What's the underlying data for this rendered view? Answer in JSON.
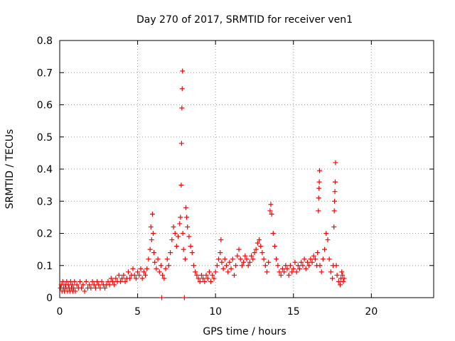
{
  "chart_data": {
    "type": "scatter",
    "title": "Day 270 of 2017, SRMTID for receiver ven1",
    "xlabel": "GPS time / hours",
    "ylabel": "SRMTID / TECUs",
    "xlim": [
      0,
      24
    ],
    "ylim": [
      0,
      0.8
    ],
    "xticks": [
      0,
      5,
      10,
      15,
      20
    ],
    "xtick_labels": [
      "0",
      "5",
      "10",
      "15",
      "20"
    ],
    "yticks": [
      0,
      0.1,
      0.2,
      0.3,
      0.4,
      0.5,
      0.6,
      0.7,
      0.8
    ],
    "ytick_labels": [
      "0",
      "0.1",
      "0.2",
      "0.3",
      "0.4",
      "0.5",
      "0.6",
      "0.7",
      "0.8"
    ],
    "grid": true,
    "marker": "plus",
    "color": "#ff0000",
    "series": [
      {
        "name": "ven1",
        "points": [
          [
            0.05,
            0.03
          ],
          [
            0.1,
            0.04
          ],
          [
            0.15,
            0.02
          ],
          [
            0.2,
            0.05
          ],
          [
            0.25,
            0.03
          ],
          [
            0.3,
            0.02
          ],
          [
            0.35,
            0.04
          ],
          [
            0.4,
            0.03
          ],
          [
            0.45,
            0.05
          ],
          [
            0.5,
            0.02
          ],
          [
            0.55,
            0.04
          ],
          [
            0.6,
            0.03
          ],
          [
            0.65,
            0.02
          ],
          [
            0.7,
            0.05
          ],
          [
            0.75,
            0.03
          ],
          [
            0.8,
            0.04
          ],
          [
            0.85,
            0.02
          ],
          [
            0.9,
            0.03
          ],
          [
            0.95,
            0.05
          ],
          [
            1.0,
            0.02
          ],
          [
            1.1,
            0.04
          ],
          [
            1.2,
            0.03
          ],
          [
            1.3,
            0.05
          ],
          [
            1.4,
            0.03
          ],
          [
            1.5,
            0.04
          ],
          [
            1.6,
            0.02
          ],
          [
            1.7,
            0.05
          ],
          [
            1.8,
            0.03
          ],
          [
            1.9,
            0.04
          ],
          [
            2.0,
            0.03
          ],
          [
            2.1,
            0.05
          ],
          [
            2.2,
            0.04
          ],
          [
            2.3,
            0.03
          ],
          [
            2.4,
            0.05
          ],
          [
            2.5,
            0.04
          ],
          [
            2.6,
            0.03
          ],
          [
            2.7,
            0.05
          ],
          [
            2.8,
            0.04
          ],
          [
            2.9,
            0.03
          ],
          [
            3.0,
            0.04
          ],
          [
            3.1,
            0.05
          ],
          [
            3.2,
            0.04
          ],
          [
            3.3,
            0.06
          ],
          [
            3.4,
            0.05
          ],
          [
            3.5,
            0.04
          ],
          [
            3.6,
            0.06
          ],
          [
            3.7,
            0.05
          ],
          [
            3.8,
            0.07
          ],
          [
            3.9,
            0.05
          ],
          [
            4.0,
            0.06
          ],
          [
            4.1,
            0.07
          ],
          [
            4.2,
            0.05
          ],
          [
            4.3,
            0.06
          ],
          [
            4.4,
            0.08
          ],
          [
            4.5,
            0.06
          ],
          [
            4.6,
            0.07
          ],
          [
            4.7,
            0.09
          ],
          [
            4.8,
            0.07
          ],
          [
            4.9,
            0.06
          ],
          [
            5.0,
            0.08
          ],
          [
            5.1,
            0.07
          ],
          [
            5.2,
            0.09
          ],
          [
            5.3,
            0.06
          ],
          [
            5.4,
            0.08
          ],
          [
            5.5,
            0.07
          ],
          [
            5.6,
            0.09
          ],
          [
            5.7,
            0.12
          ],
          [
            5.8,
            0.15
          ],
          [
            5.9,
            0.18
          ],
          [
            6.0,
            0.2
          ],
          [
            5.85,
            0.22
          ],
          [
            5.95,
            0.26
          ],
          [
            6.05,
            0.14
          ],
          [
            6.1,
            0.11
          ],
          [
            6.2,
            0.09
          ],
          [
            6.3,
            0.12
          ],
          [
            6.4,
            0.08
          ],
          [
            6.5,
            0.1
          ],
          [
            6.55,
            0.0
          ],
          [
            6.6,
            0.07
          ],
          [
            6.7,
            0.06
          ],
          [
            6.8,
            0.09
          ],
          [
            6.9,
            0.12
          ],
          [
            7.0,
            0.1
          ],
          [
            7.1,
            0.14
          ],
          [
            7.2,
            0.18
          ],
          [
            7.3,
            0.22
          ],
          [
            7.4,
            0.2
          ],
          [
            7.5,
            0.16
          ],
          [
            7.6,
            0.19
          ],
          [
            7.7,
            0.23
          ],
          [
            7.75,
            0.25
          ],
          [
            7.8,
            0.35
          ],
          [
            7.82,
            0.48
          ],
          [
            7.84,
            0.59
          ],
          [
            7.86,
            0.65
          ],
          [
            7.88,
            0.705
          ],
          [
            7.9,
            0.2
          ],
          [
            7.95,
            0.15
          ],
          [
            8.0,
            0.0
          ],
          [
            8.05,
            0.12
          ],
          [
            8.1,
            0.28
          ],
          [
            8.15,
            0.25
          ],
          [
            8.2,
            0.22
          ],
          [
            8.3,
            0.19
          ],
          [
            8.4,
            0.16
          ],
          [
            8.5,
            0.14
          ],
          [
            8.6,
            0.1
          ],
          [
            8.7,
            0.08
          ],
          [
            8.8,
            0.07
          ],
          [
            8.9,
            0.06
          ],
          [
            9.0,
            0.05
          ],
          [
            9.1,
            0.07
          ],
          [
            9.2,
            0.06
          ],
          [
            9.3,
            0.05
          ],
          [
            9.4,
            0.07
          ],
          [
            9.5,
            0.06
          ],
          [
            9.6,
            0.08
          ],
          [
            9.7,
            0.05
          ],
          [
            9.8,
            0.07
          ],
          [
            9.9,
            0.06
          ],
          [
            10.0,
            0.08
          ],
          [
            10.1,
            0.1
          ],
          [
            10.2,
            0.12
          ],
          [
            10.3,
            0.14
          ],
          [
            10.35,
            0.18
          ],
          [
            10.4,
            0.11
          ],
          [
            10.5,
            0.09
          ],
          [
            10.6,
            0.12
          ],
          [
            10.7,
            0.1
          ],
          [
            10.8,
            0.08
          ],
          [
            10.9,
            0.11
          ],
          [
            11.0,
            0.09
          ],
          [
            11.1,
            0.12
          ],
          [
            11.2,
            0.07
          ],
          [
            11.3,
            0.1
          ],
          [
            11.4,
            0.13
          ],
          [
            11.5,
            0.15
          ],
          [
            11.6,
            0.12
          ],
          [
            11.7,
            0.1
          ],
          [
            11.8,
            0.11
          ],
          [
            11.9,
            0.13
          ],
          [
            12.0,
            0.12
          ],
          [
            12.1,
            0.1
          ],
          [
            12.2,
            0.11
          ],
          [
            12.3,
            0.13
          ],
          [
            12.4,
            0.12
          ],
          [
            12.5,
            0.14
          ],
          [
            12.6,
            0.15
          ],
          [
            12.7,
            0.17
          ],
          [
            12.8,
            0.18
          ],
          [
            12.9,
            0.16
          ],
          [
            13.0,
            0.14
          ],
          [
            13.1,
            0.12
          ],
          [
            13.2,
            0.1
          ],
          [
            13.3,
            0.08
          ],
          [
            13.4,
            0.11
          ],
          [
            13.5,
            0.27
          ],
          [
            13.55,
            0.29
          ],
          [
            13.6,
            0.26
          ],
          [
            13.7,
            0.2
          ],
          [
            13.8,
            0.16
          ],
          [
            13.9,
            0.12
          ],
          [
            14.0,
            0.1
          ],
          [
            14.1,
            0.08
          ],
          [
            14.2,
            0.07
          ],
          [
            14.3,
            0.09
          ],
          [
            14.4,
            0.08
          ],
          [
            14.5,
            0.1
          ],
          [
            14.6,
            0.09
          ],
          [
            14.7,
            0.07
          ],
          [
            14.8,
            0.1
          ],
          [
            14.9,
            0.08
          ],
          [
            15.0,
            0.09
          ],
          [
            15.1,
            0.11
          ],
          [
            15.2,
            0.08
          ],
          [
            15.3,
            0.1
          ],
          [
            15.4,
            0.09
          ],
          [
            15.5,
            0.11
          ],
          [
            15.6,
            0.1
          ],
          [
            15.7,
            0.12
          ],
          [
            15.8,
            0.09
          ],
          [
            15.9,
            0.11
          ],
          [
            16.0,
            0.1
          ],
          [
            16.1,
            0.12
          ],
          [
            16.2,
            0.11
          ],
          [
            16.3,
            0.13
          ],
          [
            16.4,
            0.12
          ],
          [
            16.5,
            0.1
          ],
          [
            16.55,
            0.14
          ],
          [
            16.6,
            0.27
          ],
          [
            16.62,
            0.31
          ],
          [
            16.64,
            0.34
          ],
          [
            16.66,
            0.36
          ],
          [
            16.68,
            0.395
          ],
          [
            16.7,
            0.1
          ],
          [
            16.8,
            0.08
          ],
          [
            16.9,
            0.12
          ],
          [
            17.0,
            0.15
          ],
          [
            17.1,
            0.2
          ],
          [
            17.2,
            0.18
          ],
          [
            17.3,
            0.12
          ],
          [
            17.4,
            0.08
          ],
          [
            17.5,
            0.06
          ],
          [
            17.55,
            0.1
          ],
          [
            17.6,
            0.22
          ],
          [
            17.62,
            0.27
          ],
          [
            17.64,
            0.3
          ],
          [
            17.66,
            0.33
          ],
          [
            17.68,
            0.36
          ],
          [
            17.7,
            0.42
          ],
          [
            17.75,
            0.1
          ],
          [
            17.8,
            0.07
          ],
          [
            17.9,
            0.05
          ],
          [
            18.0,
            0.04
          ],
          [
            18.05,
            0.06
          ],
          [
            18.1,
            0.08
          ],
          [
            18.15,
            0.07
          ],
          [
            18.2,
            0.05
          ],
          [
            18.25,
            0.06
          ]
        ]
      }
    ]
  }
}
